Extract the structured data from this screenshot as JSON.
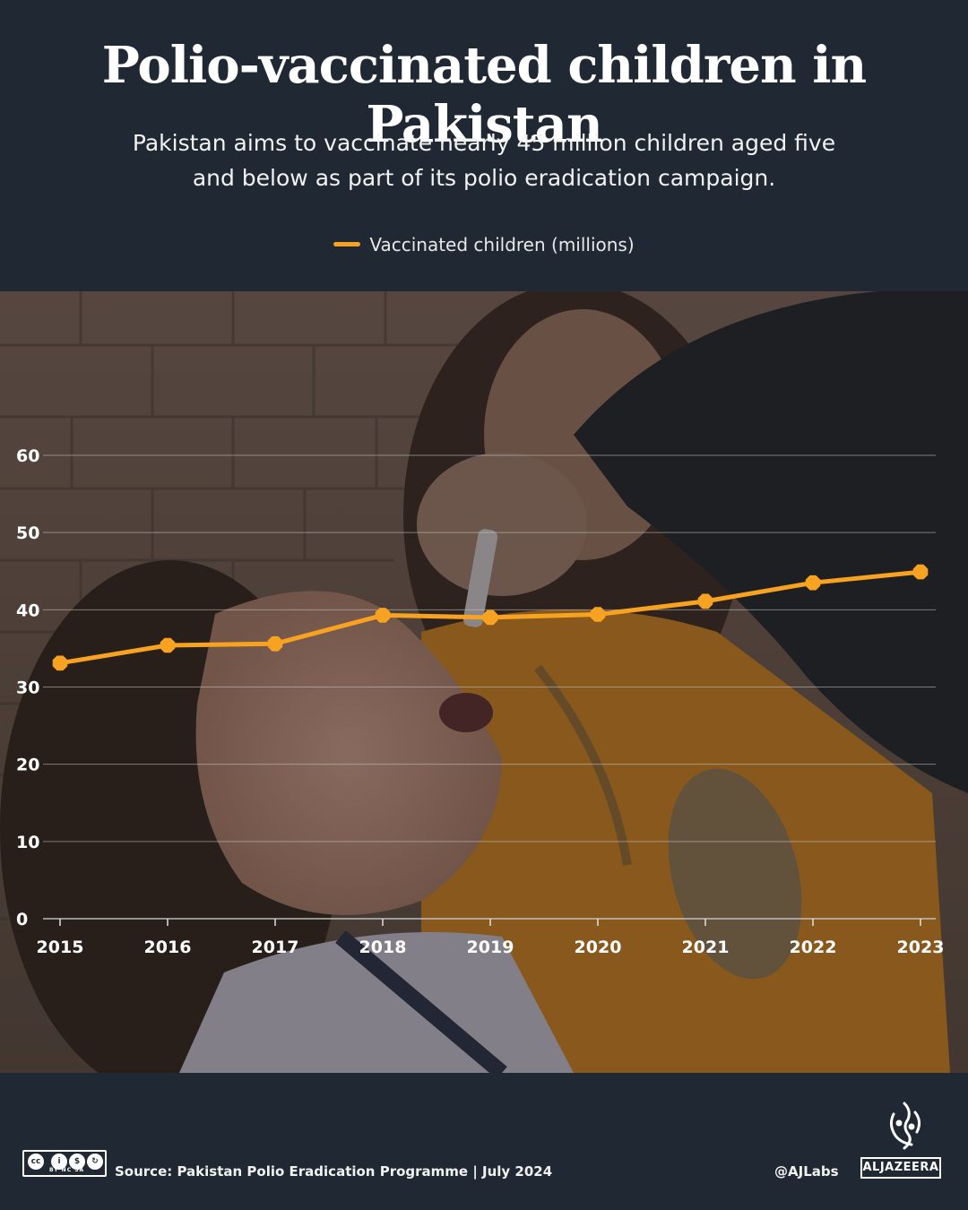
{
  "header": {
    "title": "Polio-vaccinated children in Pakistan",
    "subtitle_line1": "Pakistan aims to vaccinate nearly 45 million children aged five",
    "subtitle_line2": "and below as part of its polio eradication campaign.",
    "legend_label": "Vaccinated children (millions)"
  },
  "colors": {
    "background": "#1f2833",
    "series": "#f7a221",
    "gridline": "#c9c9c9"
  },
  "chart_data": {
    "type": "line",
    "title": "Polio-vaccinated children in Pakistan",
    "x": [
      "2015",
      "2016",
      "2017",
      "2018",
      "2019",
      "2020",
      "2021",
      "2022",
      "2023"
    ],
    "series": [
      {
        "name": "Vaccinated children (millions)",
        "values": [
          33.1,
          35.4,
          35.6,
          39.3,
          39.0,
          39.4,
          41.1,
          43.5,
          44.9
        ]
      }
    ],
    "yticks": [
      0,
      10,
      20,
      30,
      40,
      50,
      60
    ],
    "ylim": [
      0,
      60
    ],
    "grid": true,
    "legend": "top-center"
  },
  "footer": {
    "cc_labels": "BY  NC  SA",
    "source": "Source:  Pakistan Polio Eradication Programme  |  July 2024",
    "handle": "@AJLabs",
    "brand": "ALJAZEERA"
  }
}
